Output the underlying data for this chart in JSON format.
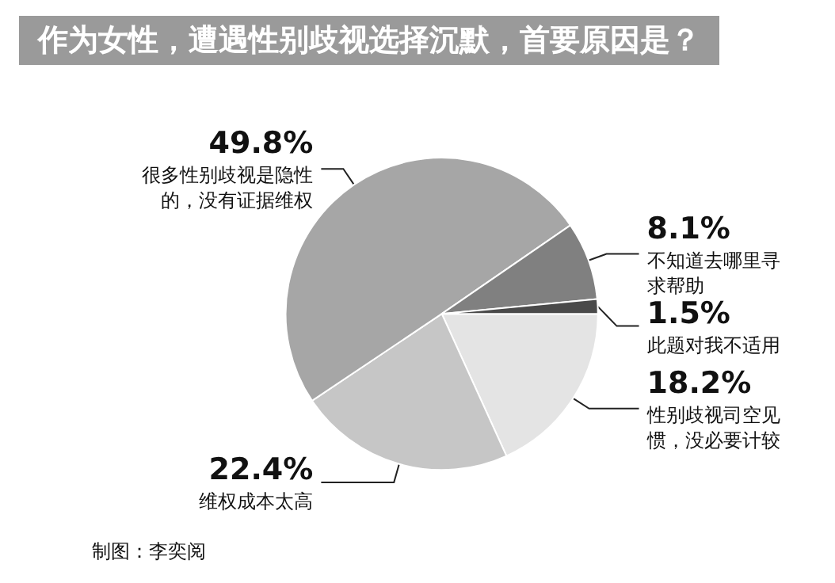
{
  "chart_data": {
    "type": "pie",
    "title": "作为女性，遭遇性别歧视选择沉默，首要原因是？",
    "categories": [
      "性别歧视司空见惯，没必要计较",
      "维权成本太高",
      "很多性别歧视是隐性的，没有证据维权",
      "不知道去哪里寻求帮助",
      "此题对我不适用"
    ],
    "values": [
      18.2,
      22.4,
      49.8,
      8.1,
      1.5
    ],
    "colors": [
      "#e4e4e4",
      "#c6c6c6",
      "#a6a6a6",
      "#808080",
      "#4a4a4a"
    ],
    "value_labels": [
      "18.2%",
      "22.4%",
      "49.8%",
      "8.1%",
      "1.5%"
    ],
    "legend": false,
    "annotations": [
      "制图：李奕阅"
    ]
  }
}
